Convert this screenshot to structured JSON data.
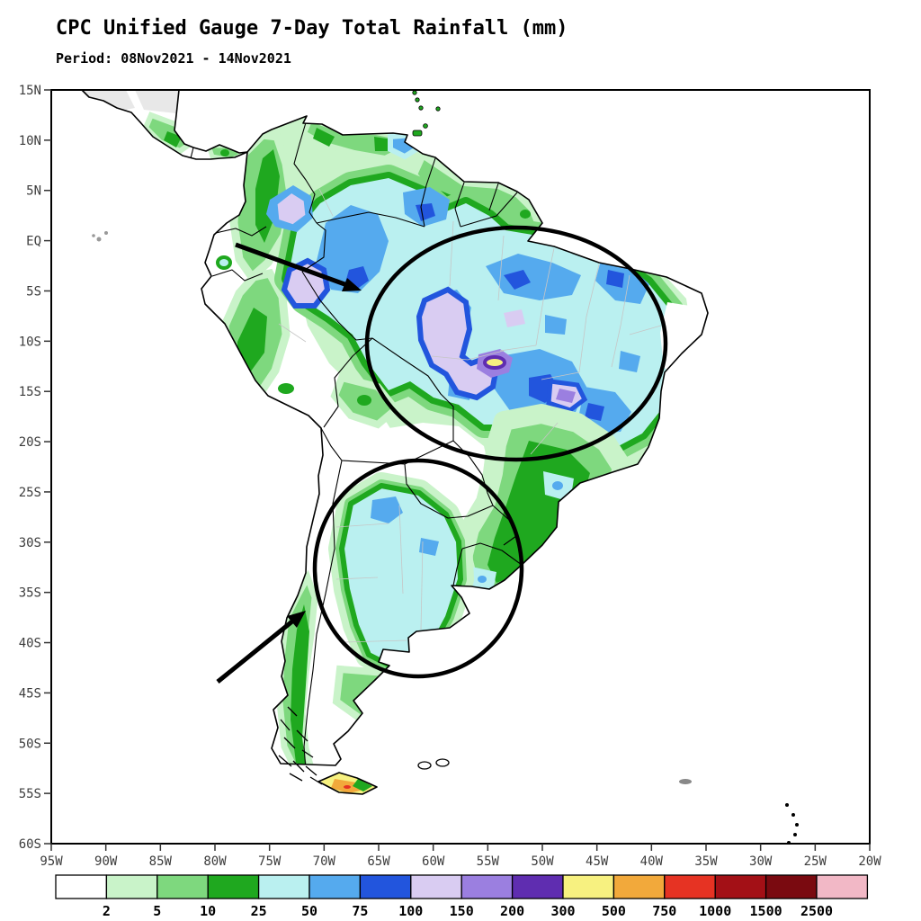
{
  "title": "CPC Unified Gauge 7-Day Total Rainfall (mm)",
  "subtitle": "Period: 08Nov2021 - 14Nov2021",
  "axes": {
    "lat_labels": [
      "15N",
      "10N",
      "5N",
      "EQ",
      "5S",
      "10S",
      "15S",
      "20S",
      "25S",
      "30S",
      "35S",
      "40S",
      "45S",
      "50S",
      "55S",
      "60S"
    ],
    "lon_labels": [
      "95W",
      "90W",
      "85W",
      "80W",
      "75W",
      "70W",
      "65W",
      "60W",
      "55W",
      "50W",
      "45W",
      "40W",
      "35W",
      "30W",
      "25W",
      "20W"
    ]
  },
  "legend": {
    "tick_values": [
      "2",
      "5",
      "10",
      "25",
      "50",
      "75",
      "100",
      "150",
      "200",
      "300",
      "500",
      "750",
      "1000",
      "1500",
      "2500"
    ],
    "colors": [
      "#ffffff",
      "#c9f3c9",
      "#7ed87e",
      "#1fa81f",
      "#baf0f0",
      "#55aaee",
      "#2255dd",
      "#d9ccf2",
      "#9b7fe0",
      "#5f2db0",
      "#f7f180",
      "#f2a93b",
      "#e63323",
      "#a31016",
      "#7a0a10",
      "#f2b8c6"
    ]
  },
  "map_colors": {
    "coastline": "#000000",
    "country_border": "#000000",
    "state_border": "#c6c6c6",
    "no_data_grey": "#e8e8e8",
    "ocean": "#ffffff"
  }
}
